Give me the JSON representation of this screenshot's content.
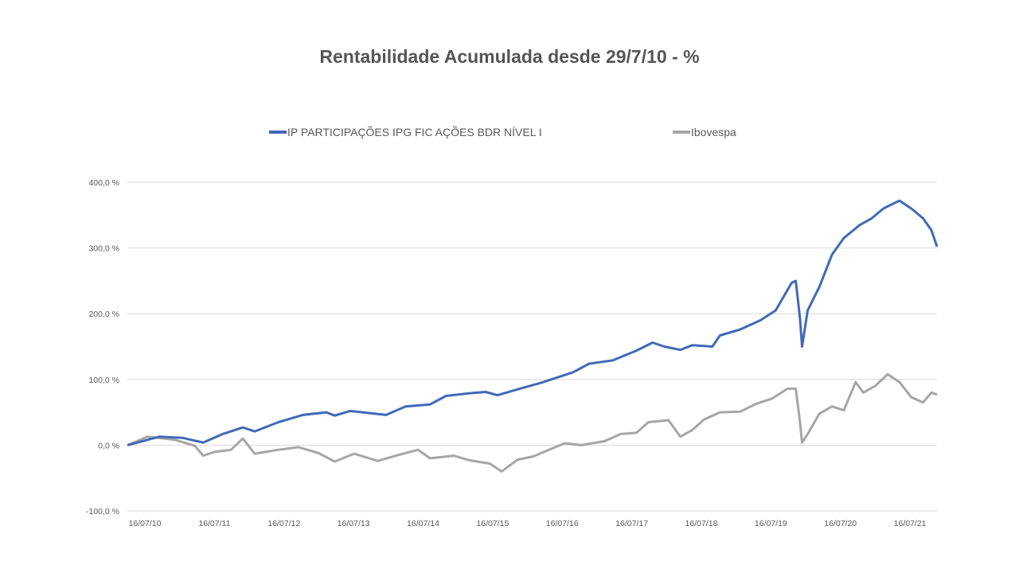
{
  "chart_data": {
    "type": "line",
    "title": "Rentabilidade Acumulada desde 29/7/10 - %",
    "xlabel": "",
    "ylabel": "",
    "ylim": [
      -100,
      400
    ],
    "yticks": [
      400,
      300,
      200,
      100,
      0,
      -100
    ],
    "ytick_labels": [
      "400,0 %",
      "300,0 %",
      "200,0 %",
      "100,0 %",
      "0,0 %",
      "-100,0 %"
    ],
    "xlim": [
      2010.54,
      2022.18
    ],
    "xticks": [
      2010.54,
      2011.54,
      2012.54,
      2013.54,
      2014.54,
      2015.54,
      2016.54,
      2017.54,
      2018.54,
      2019.54,
      2020.54,
      2021.54
    ],
    "xtick_labels": [
      "16/07/10",
      "16/07/11",
      "16/07/12",
      "16/07/13",
      "16/07/14",
      "16/07/15",
      "16/07/16",
      "16/07/17",
      "16/07/18",
      "16/07/19",
      "16/07/20",
      "16/07/21"
    ],
    "grid": true,
    "legend_position": "top-center",
    "series": [
      {
        "name": "IP PARTICIPAÇÕES IPG FIC AÇÕES BDR NÍVEL I",
        "color": "#4169b8",
        "x": [
          2010.54,
          2011.0,
          2011.34,
          2011.63,
          2011.91,
          2012.2,
          2012.37,
          2012.71,
          2013.06,
          2013.4,
          2013.52,
          2013.74,
          2014.09,
          2014.26,
          2014.54,
          2014.89,
          2015.12,
          2015.46,
          2015.69,
          2015.86,
          2016.15,
          2016.49,
          2016.72,
          2016.95,
          2017.18,
          2017.52,
          2017.86,
          2018.09,
          2018.26,
          2018.49,
          2018.66,
          2018.95,
          2019.06,
          2019.35,
          2019.64,
          2019.86,
          2020.09,
          2020.15,
          2020.21,
          2020.24,
          2020.32,
          2020.49,
          2020.67,
          2020.84,
          2021.07,
          2021.24,
          2021.41,
          2021.64,
          2021.81,
          2021.98,
          2022.1,
          2022.18
        ],
        "y": [
          0,
          13,
          11,
          4,
          17,
          27,
          21,
          35,
          46,
          50,
          45,
          52,
          48,
          46,
          59,
          62,
          75,
          79,
          81,
          76,
          85,
          95,
          103,
          111,
          124,
          129,
          144,
          156,
          150,
          145,
          152,
          150,
          167,
          176,
          190,
          205,
          247,
          250,
          193,
          150,
          205,
          241,
          290,
          315,
          335,
          345,
          360,
          372,
          360,
          345,
          327,
          302
        ]
      },
      {
        "name": "Ibovespa",
        "color": "#a6a6a6",
        "x": [
          2010.54,
          2010.83,
          2011.23,
          2011.51,
          2011.63,
          2011.8,
          2012.03,
          2012.2,
          2012.37,
          2012.71,
          2013.0,
          2013.29,
          2013.52,
          2013.8,
          2014.14,
          2014.43,
          2014.72,
          2014.89,
          2015.23,
          2015.46,
          2015.75,
          2015.92,
          2016.15,
          2016.38,
          2016.6,
          2016.83,
          2017.06,
          2017.4,
          2017.63,
          2017.86,
          2018.03,
          2018.32,
          2018.49,
          2018.66,
          2018.83,
          2019.06,
          2019.35,
          2019.58,
          2019.81,
          2020.03,
          2020.15,
          2020.21,
          2020.24,
          2020.32,
          2020.49,
          2020.67,
          2020.84,
          2021.01,
          2021.12,
          2021.29,
          2021.47,
          2021.64,
          2021.81,
          2021.98,
          2022.1,
          2022.18
        ],
        "y": [
          0,
          13,
          8,
          -1,
          -16,
          -10,
          -7,
          10,
          -13,
          -7,
          -3,
          -12,
          -25,
          -13,
          -24,
          -15,
          -7,
          -20,
          -16,
          -23,
          -28,
          -40,
          -22,
          -17,
          -7,
          3,
          0,
          6,
          17,
          19,
          35,
          38,
          13,
          23,
          39,
          50,
          51,
          63,
          71,
          86,
          86,
          35,
          4,
          17,
          48,
          59,
          53,
          96,
          80,
          90,
          108,
          96,
          73,
          65,
          80,
          77
        ]
      }
    ]
  }
}
